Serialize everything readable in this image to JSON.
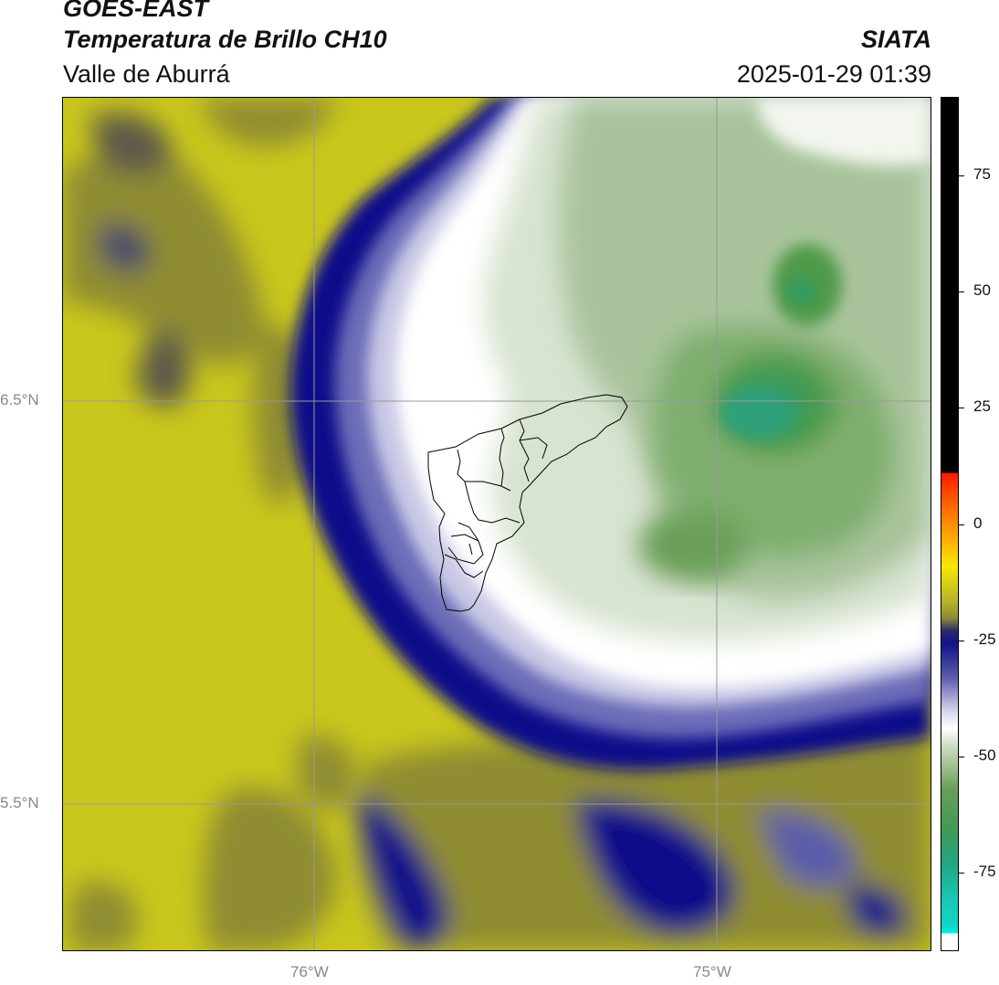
{
  "header": {
    "satellite": "GOES-EAST",
    "product": "Temperatura de Brillo CH10",
    "region": "Valle de Aburrá",
    "agency": "SIATA",
    "datetime": "2025-01-29 01:39"
  },
  "map": {
    "lat_labels": [
      "6.5°N",
      "5.5°N"
    ],
    "lon_labels": [
      "76°W",
      "75°W"
    ],
    "gridline_color": "#999999"
  },
  "colorbar": {
    "ticks": [
      "75",
      "50",
      "25",
      "0",
      "-25",
      "-50",
      "-75"
    ],
    "tick_values": [
      75,
      50,
      25,
      0,
      -25,
      -50,
      -75
    ],
    "range": [
      -92,
      92
    ]
  },
  "palette": {
    "warm_yellow": "#c9c61c",
    "olive": "#8f8c32",
    "dark_blue": "#11118a",
    "mid_blue": "#5c5cab",
    "light_lavender": "#d7d7ea",
    "white": "#ffffff",
    "pale_green": "#cfdcc6",
    "green": "#6a9f59",
    "deep_green": "#3f9a55",
    "cyan": "#10d5c5",
    "red": "#ff1800",
    "black": "#000000"
  }
}
